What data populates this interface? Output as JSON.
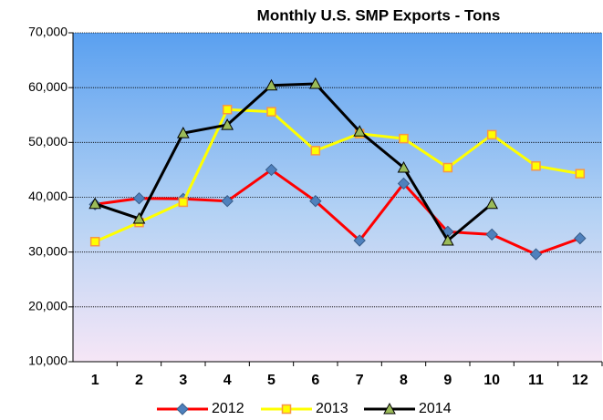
{
  "chart_data": {
    "type": "line",
    "title": "Monthly U.S.  SMP Exports - Tons",
    "categories": [
      "1",
      "2",
      "3",
      "4",
      "5",
      "6",
      "7",
      "8",
      "9",
      "10",
      "11",
      "12"
    ],
    "series": [
      {
        "name": "2012",
        "color": "#ff0000",
        "marker": "diamond",
        "marker_color": "#4f81bd",
        "values": [
          38700,
          39800,
          39700,
          39300,
          45000,
          39300,
          32100,
          42500,
          33700,
          33200,
          29600,
          32500
        ]
      },
      {
        "name": "2013",
        "color": "#ffff00",
        "marker": "square",
        "marker_color": "#f79646",
        "values": [
          31900,
          35400,
          39100,
          56000,
          55600,
          48500,
          51600,
          50700,
          45400,
          51400,
          45700,
          44300
        ]
      },
      {
        "name": "2014",
        "color": "#000000",
        "marker": "triangle",
        "marker_color": "#9bbb59",
        "values": [
          38800,
          36100,
          51700,
          53200,
          60400,
          60700,
          52000,
          45400,
          32100,
          38800,
          null,
          null
        ]
      }
    ],
    "ylim": [
      10000,
      70000
    ],
    "yticks": [
      {
        "value": 10000,
        "label": "10,000"
      },
      {
        "value": 20000,
        "label": "20,000"
      },
      {
        "value": 30000,
        "label": "30,000"
      },
      {
        "value": 40000,
        "label": "40,000"
      },
      {
        "value": 50000,
        "label": "50,000"
      },
      {
        "value": 60000,
        "label": "60,000"
      },
      {
        "value": 70000,
        "label": "70,000"
      }
    ],
    "grid": true,
    "legend": "bottom"
  }
}
